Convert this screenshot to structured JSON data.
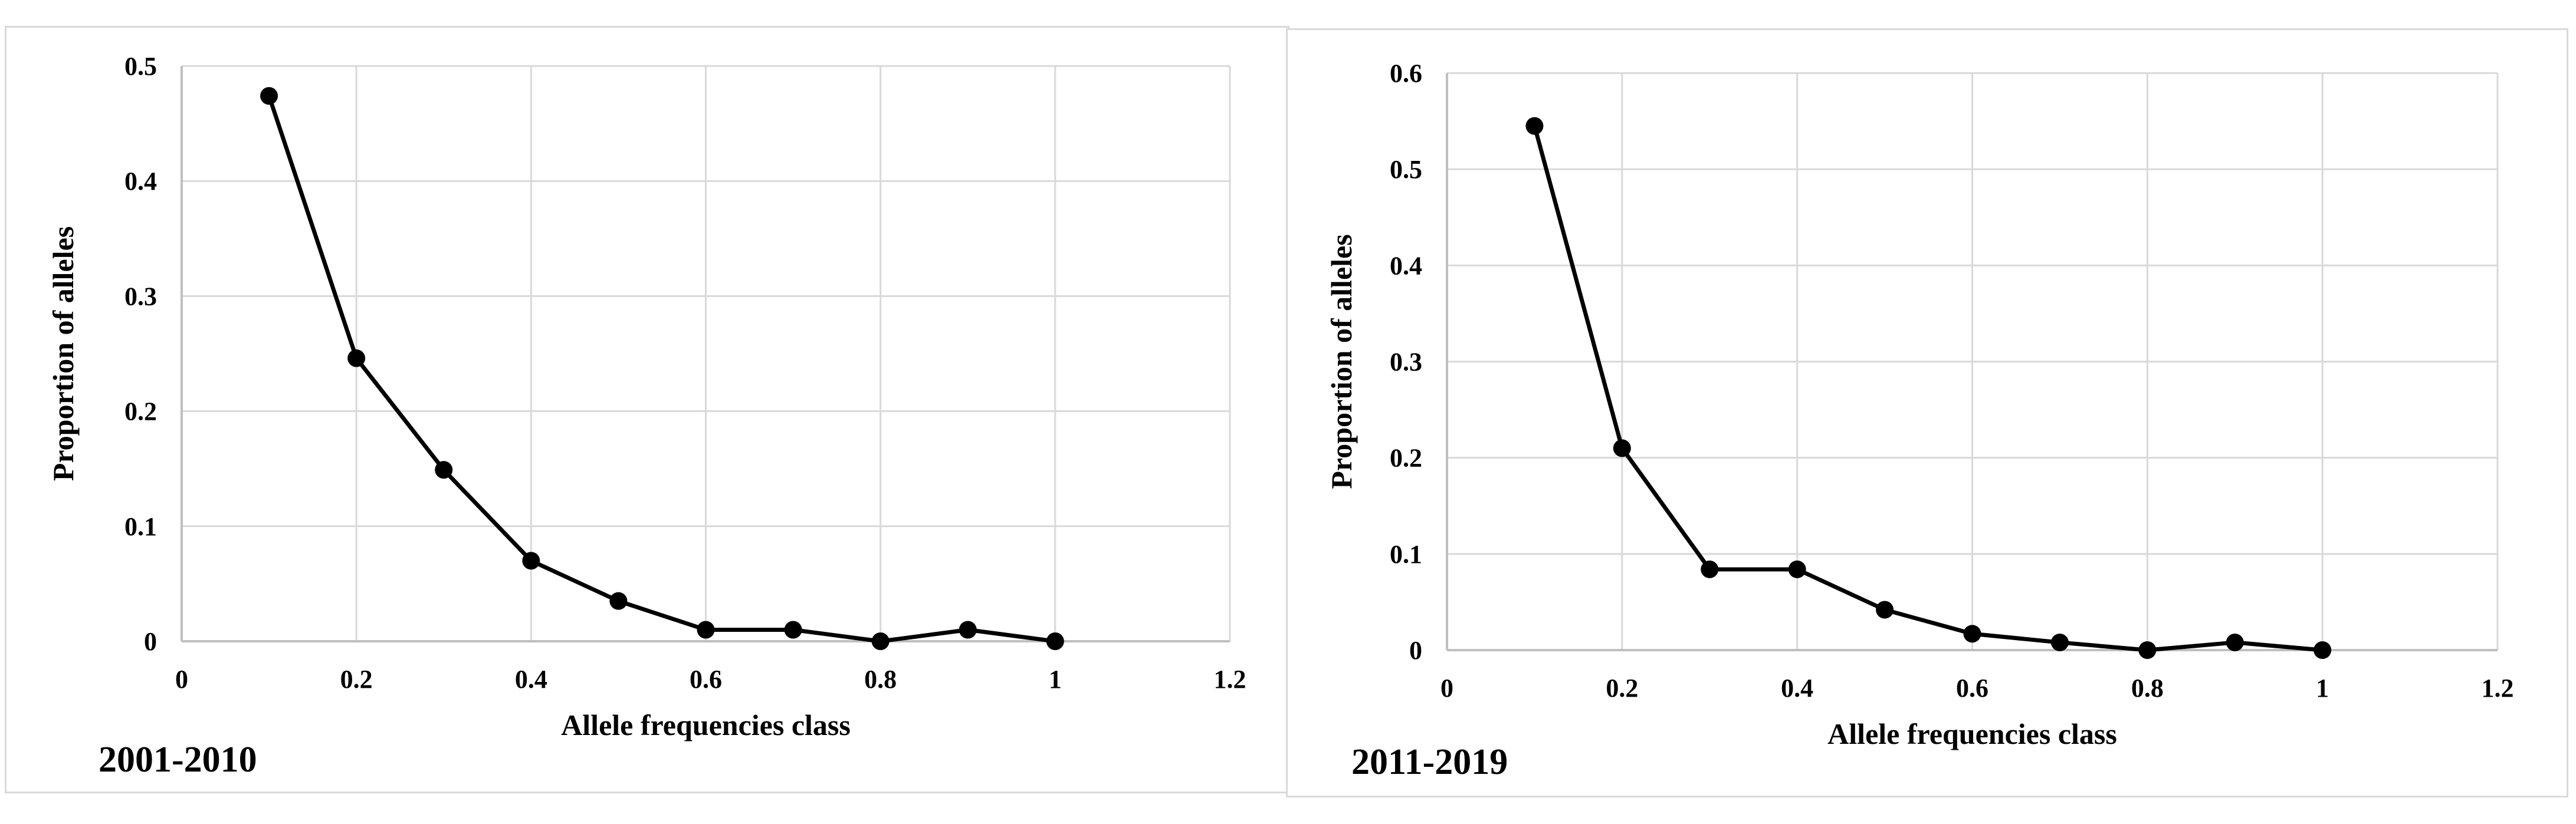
{
  "chart_data": [
    {
      "type": "scatter",
      "mode": "lines+markers",
      "period_label": "2001-2010",
      "xlabel": "Allele frequencies class",
      "ylabel": "Proportion of alleles",
      "xlim": [
        0,
        1.2
      ],
      "ylim": [
        0,
        0.5
      ],
      "xticks": [
        "0",
        "0.2",
        "0.4",
        "0.6",
        "0.8",
        "1",
        "1.2"
      ],
      "yticks": [
        "0",
        "0.1",
        "0.2",
        "0.3",
        "0.4",
        "0.5"
      ],
      "grid": true,
      "series": [
        {
          "x": [
            0.1,
            0.2,
            0.3,
            0.4,
            0.5,
            0.6,
            0.7,
            0.8,
            0.9,
            1.0
          ],
          "y": [
            0.474,
            0.246,
            0.149,
            0.07,
            0.035,
            0.01,
            0.01,
            0.0,
            0.01,
            0.0
          ]
        }
      ],
      "colors": {
        "line": "#000000",
        "marker": "#000000",
        "grid": "#d9d9d9",
        "axis": "#bfbfbf"
      }
    },
    {
      "type": "scatter",
      "mode": "lines+markers",
      "period_label": "2011-2019",
      "xlabel": "Allele frequencies class",
      "ylabel": "Proportion of alleles",
      "xlim": [
        0,
        1.2
      ],
      "ylim": [
        0,
        0.6
      ],
      "xticks": [
        "0",
        "0.2",
        "0.4",
        "0.6",
        "0.8",
        "1",
        "1.2"
      ],
      "yticks": [
        "0",
        "0.1",
        "0.2",
        "0.3",
        "0.4",
        "0.5",
        "0.6"
      ],
      "grid": true,
      "series": [
        {
          "x": [
            0.1,
            0.2,
            0.3,
            0.4,
            0.5,
            0.6,
            0.7,
            0.8,
            0.9,
            1.0
          ],
          "y": [
            0.545,
            0.21,
            0.084,
            0.084,
            0.042,
            0.017,
            0.008,
            0.0,
            0.008,
            0.0
          ]
        }
      ],
      "colors": {
        "line": "#000000",
        "marker": "#000000",
        "grid": "#d9d9d9",
        "axis": "#bfbfbf"
      }
    }
  ]
}
